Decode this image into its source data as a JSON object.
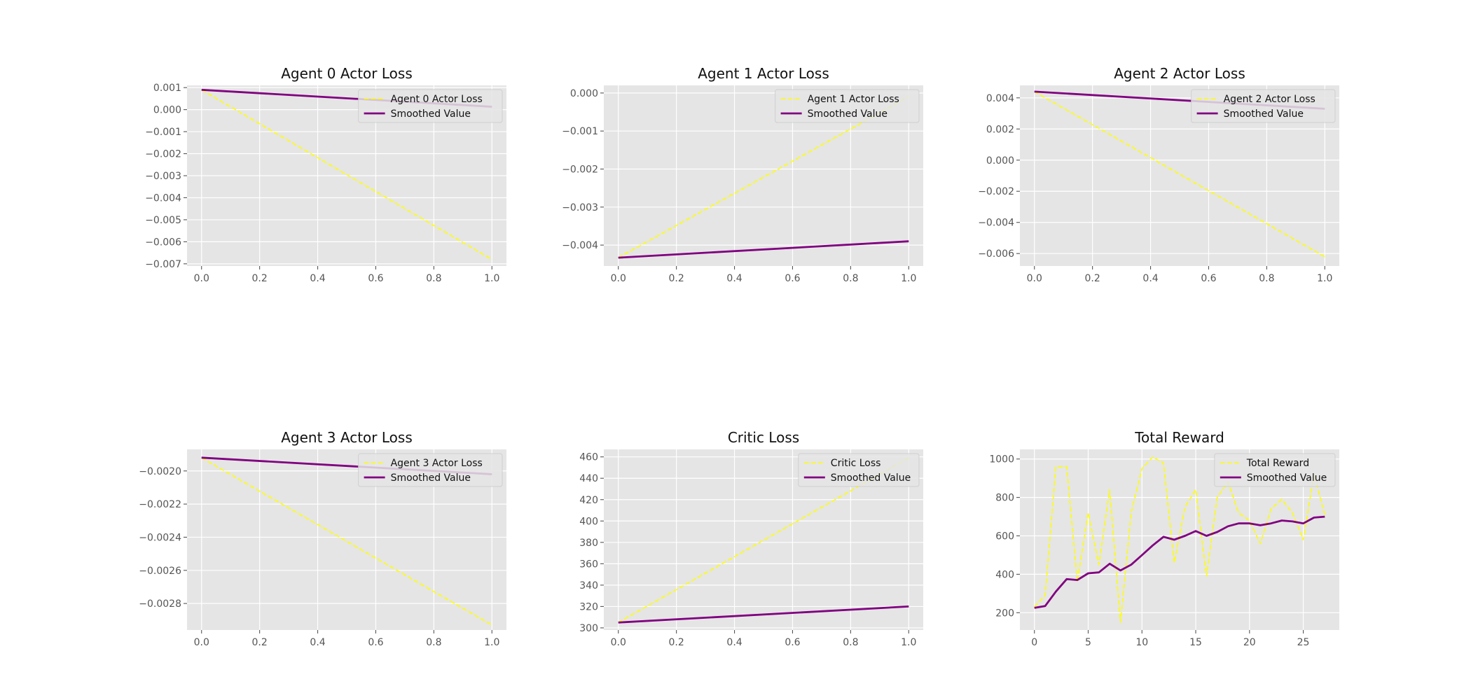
{
  "colors": {
    "raw": "#ffff00",
    "smoothed": "#800080",
    "background": "#e5e5e5",
    "grid": "#ffffff"
  },
  "chart_data": [
    {
      "type": "line",
      "title": "Agent 0 Actor Loss",
      "xlabel": "",
      "ylabel": "",
      "xlim": [
        -0.05,
        1.05
      ],
      "ylim": [
        -0.0071,
        0.0011
      ],
      "xticks": [
        0.0,
        0.2,
        0.4,
        0.6,
        0.8,
        1.0
      ],
      "xtick_labels": [
        "0.0",
        "0.2",
        "0.4",
        "0.6",
        "0.8",
        "1.0"
      ],
      "yticks": [
        0.001,
        0.0,
        -0.001,
        -0.002,
        -0.003,
        -0.004,
        -0.005,
        -0.006,
        -0.007
      ],
      "ytick_labels": [
        "0.001",
        "0.000",
        "−0.001",
        "−0.002",
        "−0.003",
        "−0.004",
        "−0.005",
        "−0.006",
        "−0.007"
      ],
      "grid": true,
      "legend": "upper right",
      "series": [
        {
          "name": "Agent 0 Actor Loss",
          "style": "raw",
          "x": [
            0,
            1
          ],
          "y": [
            0.0009,
            -0.0068
          ]
        },
        {
          "name": "Smoothed Value",
          "style": "smoothed",
          "x": [
            0,
            1
          ],
          "y": [
            0.0009,
            0.00013
          ]
        }
      ]
    },
    {
      "type": "line",
      "title": "Agent 1 Actor Loss",
      "xlabel": "",
      "ylabel": "",
      "xlim": [
        -0.05,
        1.05
      ],
      "ylim": [
        -0.00455,
        0.0002
      ],
      "xticks": [
        0.0,
        0.2,
        0.4,
        0.6,
        0.8,
        1.0
      ],
      "xtick_labels": [
        "0.0",
        "0.2",
        "0.4",
        "0.6",
        "0.8",
        "1.0"
      ],
      "yticks": [
        0.0,
        -0.001,
        -0.002,
        -0.003,
        -0.004
      ],
      "ytick_labels": [
        "0.000",
        "−0.001",
        "−0.002",
        "−0.003",
        "−0.004"
      ],
      "grid": true,
      "legend": "upper right",
      "series": [
        {
          "name": "Agent 1 Actor Loss",
          "style": "raw",
          "x": [
            0,
            1
          ],
          "y": [
            -0.00433,
            -0.0001
          ]
        },
        {
          "name": "Smoothed Value",
          "style": "smoothed",
          "x": [
            0,
            1
          ],
          "y": [
            -0.00433,
            -0.0039
          ]
        }
      ]
    },
    {
      "type": "line",
      "title": "Agent 2 Actor Loss",
      "xlabel": "",
      "ylabel": "",
      "xlim": [
        -0.05,
        1.05
      ],
      "ylim": [
        -0.0068,
        0.0048
      ],
      "xticks": [
        0.0,
        0.2,
        0.4,
        0.6,
        0.8,
        1.0
      ],
      "xtick_labels": [
        "0.0",
        "0.2",
        "0.4",
        "0.6",
        "0.8",
        "1.0"
      ],
      "yticks": [
        0.004,
        0.002,
        0.0,
        -0.002,
        -0.004,
        -0.006
      ],
      "ytick_labels": [
        "0.004",
        "0.002",
        "0.000",
        "−0.002",
        "−0.004",
        "−0.006"
      ],
      "grid": true,
      "legend": "upper right",
      "series": [
        {
          "name": "Agent 2 Actor Loss",
          "style": "raw",
          "x": [
            0,
            1
          ],
          "y": [
            0.0044,
            -0.0062
          ]
        },
        {
          "name": "Smoothed Value",
          "style": "smoothed",
          "x": [
            0,
            1
          ],
          "y": [
            0.0044,
            0.0033
          ]
        }
      ]
    },
    {
      "type": "line",
      "title": "Agent 3 Actor Loss",
      "xlabel": "",
      "ylabel": "",
      "xlim": [
        -0.05,
        1.05
      ],
      "ylim": [
        -0.00296,
        -0.00187
      ],
      "xticks": [
        0.0,
        0.2,
        0.4,
        0.6,
        0.8,
        1.0
      ],
      "xtick_labels": [
        "0.0",
        "0.2",
        "0.4",
        "0.6",
        "0.8",
        "1.0"
      ],
      "yticks": [
        -0.002,
        -0.0022,
        -0.0024,
        -0.0026,
        -0.0028
      ],
      "ytick_labels": [
        "−0.0020",
        "−0.0022",
        "−0.0024",
        "−0.0026",
        "−0.0028"
      ],
      "grid": true,
      "legend": "upper right",
      "series": [
        {
          "name": "Agent 3 Actor Loss",
          "style": "raw",
          "x": [
            0,
            1
          ],
          "y": [
            -0.00192,
            -0.00293
          ]
        },
        {
          "name": "Smoothed Value",
          "style": "smoothed",
          "x": [
            0,
            1
          ],
          "y": [
            -0.00192,
            -0.00202
          ]
        }
      ]
    },
    {
      "type": "line",
      "title": "Critic Loss",
      "xlabel": "",
      "ylabel": "",
      "xlim": [
        -0.05,
        1.05
      ],
      "ylim": [
        298,
        467
      ],
      "xticks": [
        0.0,
        0.2,
        0.4,
        0.6,
        0.8,
        1.0
      ],
      "xtick_labels": [
        "0.0",
        "0.2",
        "0.4",
        "0.6",
        "0.8",
        "1.0"
      ],
      "yticks": [
        460,
        440,
        420,
        400,
        380,
        360,
        340,
        320,
        300
      ],
      "ytick_labels": [
        "460",
        "440",
        "420",
        "400",
        "380",
        "360",
        "340",
        "320",
        "300"
      ],
      "grid": true,
      "legend": "upper right",
      "series": [
        {
          "name": "Critic Loss",
          "style": "raw",
          "x": [
            0,
            1
          ],
          "y": [
            305,
            459
          ]
        },
        {
          "name": "Smoothed Value",
          "style": "smoothed",
          "x": [
            0,
            1
          ],
          "y": [
            305,
            320
          ]
        }
      ]
    },
    {
      "type": "line",
      "title": "Total Reward",
      "xlabel": "",
      "ylabel": "",
      "xlim": [
        -1.35,
        28.35
      ],
      "ylim": [
        110,
        1050
      ],
      "xticks": [
        0,
        5,
        10,
        15,
        20,
        25
      ],
      "xtick_labels": [
        "0",
        "5",
        "10",
        "15",
        "20",
        "25"
      ],
      "yticks": [
        1000,
        800,
        600,
        400,
        200
      ],
      "ytick_labels": [
        "1000",
        "800",
        "600",
        "400",
        "200"
      ],
      "grid": true,
      "legend": "upper right",
      "series": [
        {
          "name": "Total Reward",
          "style": "raw",
          "x": [
            0,
            1,
            2,
            3,
            4,
            5,
            6,
            7,
            8,
            9,
            10,
            11,
            12,
            13,
            14,
            15,
            16,
            17,
            18,
            19,
            20,
            21,
            22,
            23,
            24,
            25,
            26,
            27
          ],
          "y": [
            230,
            290,
            960,
            960,
            360,
            720,
            450,
            840,
            150,
            720,
            950,
            1010,
            980,
            460,
            750,
            840,
            390,
            800,
            880,
            720,
            680,
            560,
            740,
            790,
            720,
            580,
            920,
            710
          ]
        },
        {
          "name": "Smoothed Value",
          "style": "smoothed",
          "x": [
            0,
            1,
            2,
            3,
            4,
            5,
            6,
            7,
            8,
            9,
            10,
            11,
            12,
            13,
            14,
            15,
            16,
            17,
            18,
            19,
            20,
            21,
            22,
            23,
            24,
            25,
            26,
            27
          ],
          "y": [
            225,
            235,
            310,
            375,
            370,
            405,
            410,
            455,
            420,
            450,
            500,
            550,
            595,
            580,
            600,
            625,
            600,
            620,
            650,
            665,
            665,
            655,
            665,
            680,
            675,
            665,
            695,
            700
          ]
        }
      ]
    }
  ]
}
